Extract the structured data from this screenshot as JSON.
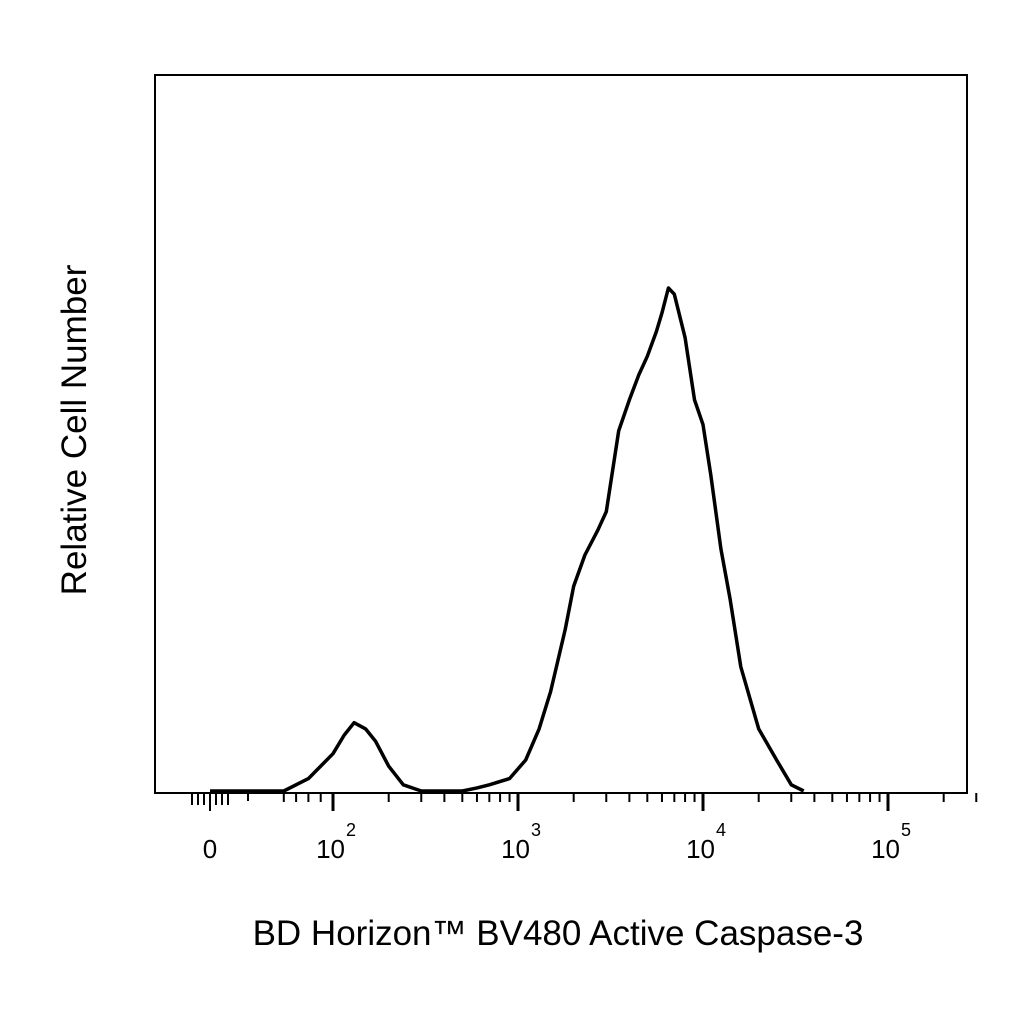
{
  "chart_data": {
    "type": "area",
    "xlabel": "BD Horizon™ BV480 Active Caspase-3",
    "ylabel": "Relative Cell Number",
    "x_scale": "biexponential",
    "x_tick_labels": [
      {
        "value": 0,
        "base": "0",
        "exp": ""
      },
      {
        "value": 100,
        "base": "10",
        "exp": "2"
      },
      {
        "value": 1000,
        "base": "10",
        "exp": "3"
      },
      {
        "value": 10000,
        "base": "10",
        "exp": "4"
      },
      {
        "value": 100000,
        "base": "10",
        "exp": "5"
      }
    ],
    "grid": false,
    "legend": "none",
    "series": [
      {
        "color": "#000000",
        "x": [
          60,
          80,
          100,
          115,
          130,
          150,
          170,
          200,
          240,
          300,
          400,
          500,
          600,
          700,
          900,
          1100,
          1300,
          1500,
          1800,
          2000,
          2300,
          2700,
          3000,
          3500,
          4000,
          4500,
          5000,
          5600,
          6000,
          6500,
          7000,
          8000,
          9000,
          10000,
          11000,
          12500,
          14000,
          16000,
          20000,
          25000,
          30000,
          35000
        ],
        "y": [
          0.0,
          0.02,
          0.06,
          0.09,
          0.11,
          0.1,
          0.08,
          0.04,
          0.01,
          0.0,
          0.0,
          0.0,
          0.005,
          0.01,
          0.02,
          0.05,
          0.1,
          0.16,
          0.26,
          0.33,
          0.38,
          0.42,
          0.45,
          0.58,
          0.63,
          0.67,
          0.7,
          0.74,
          0.77,
          0.81,
          0.8,
          0.73,
          0.63,
          0.59,
          0.51,
          0.39,
          0.31,
          0.2,
          0.1,
          0.05,
          0.01,
          0.0
        ]
      }
    ],
    "ylim": [
      0,
      1
    ]
  }
}
